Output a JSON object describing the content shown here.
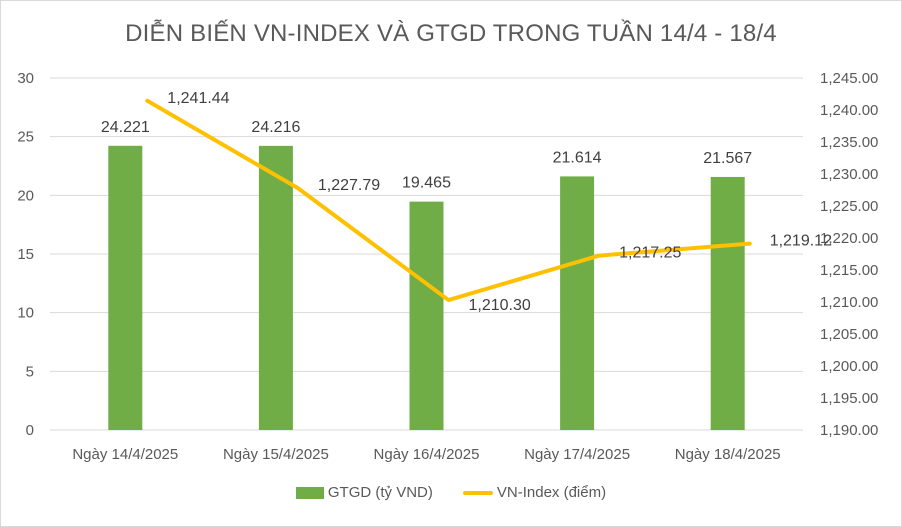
{
  "chart_data": {
    "type": "bar+line",
    "title": "DIỄN BIẾN VN-INDEX VÀ GTGD TRONG TUẦN 14/4 - 18/4",
    "categories": [
      "Ngày 14/4/2025",
      "Ngày 15/4/2025",
      "Ngày 16/4/2025",
      "Ngày 17/4/2025",
      "Ngày 18/4/2025"
    ],
    "series": [
      {
        "name": "GTGD (tỷ VND)",
        "type": "bar",
        "axis": "left",
        "color": "#70ad47",
        "values": [
          24.221,
          24.216,
          19.465,
          21.614,
          21.567
        ],
        "labels": [
          "24.221",
          "24.216",
          "19.465",
          "21.614",
          "21.567"
        ]
      },
      {
        "name": "VN-Index (điểm)",
        "type": "line",
        "axis": "right",
        "color": "#ffc000",
        "values": [
          1241.44,
          1227.79,
          1210.3,
          1217.25,
          1219.12
        ],
        "labels": [
          "1,241.44",
          "1,227.79",
          "1,210.30",
          "1,217.25",
          "1,219.12"
        ]
      }
    ],
    "y_left": {
      "min": 0,
      "max": 30,
      "step": 5,
      "ticks": [
        "0",
        "5",
        "10",
        "15",
        "20",
        "25",
        "30"
      ]
    },
    "y_right": {
      "min": 1190,
      "max": 1245,
      "step": 5,
      "ticks": [
        "1,190.00",
        "1,195.00",
        "1,200.00",
        "1,205.00",
        "1,210.00",
        "1,215.00",
        "1,220.00",
        "1,225.00",
        "1,230.00",
        "1,235.00",
        "1,240.00",
        "1,245.00"
      ]
    },
    "xlabel": "",
    "ylabel": "",
    "grid": true,
    "legend_position": "bottom"
  },
  "legend": {
    "bar_label": "GTGD (tỷ VND)",
    "line_label": "VN-Index (điểm)"
  }
}
